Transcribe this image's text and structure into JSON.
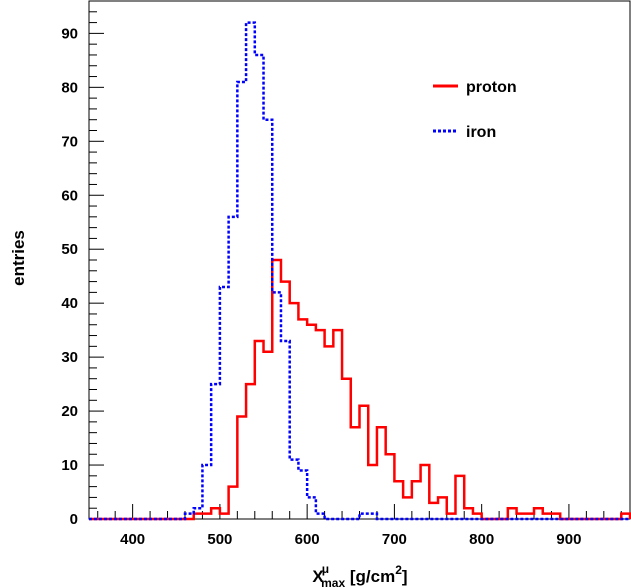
{
  "chart_data": {
    "type": "step-histogram",
    "xlabel": "X",
    "xlabel_superscript": "μ",
    "xlabel_subscript": "max",
    "xlabel_unit_open": " [g/cm",
    "xlabel_unit_power": "2",
    "xlabel_unit_close": "]",
    "ylabel": "entries",
    "xlim": [
      350,
      970
    ],
    "ylim": [
      0,
      96
    ],
    "x_ticks": [
      400,
      500,
      600,
      700,
      800,
      900
    ],
    "y_ticks": [
      0,
      10,
      20,
      30,
      40,
      50,
      60,
      70,
      80,
      90
    ],
    "bin_start": 350,
    "bin_width": 10,
    "legend_position": "top-right",
    "series": [
      {
        "name": "proton",
        "color": "#ff0000",
        "style": "solid",
        "values": [
          0,
          0,
          0,
          0,
          0,
          0,
          0,
          0,
          0,
          0,
          0,
          0,
          1,
          1,
          2,
          1,
          6,
          19,
          25,
          33,
          31,
          48,
          44,
          40,
          37,
          36,
          35,
          32,
          35,
          26,
          17,
          21,
          10,
          17,
          12,
          7,
          4,
          7,
          10,
          3,
          4,
          1,
          8,
          2,
          1,
          0,
          0,
          0,
          2,
          1,
          1,
          2,
          1,
          1,
          0,
          0,
          0,
          0,
          0,
          0,
          0,
          1
        ]
      },
      {
        "name": "iron",
        "color": "#0000ff",
        "style": "dashed",
        "values": [
          0,
          0,
          0,
          0,
          0,
          0,
          0,
          0,
          0,
          0,
          0,
          1,
          2,
          10,
          25,
          43,
          56,
          81,
          92,
          86,
          74,
          42,
          33,
          11,
          9,
          4,
          1,
          0,
          0,
          0,
          0,
          1,
          1,
          0,
          0,
          0,
          0,
          0,
          0,
          0,
          0
        ]
      }
    ]
  }
}
